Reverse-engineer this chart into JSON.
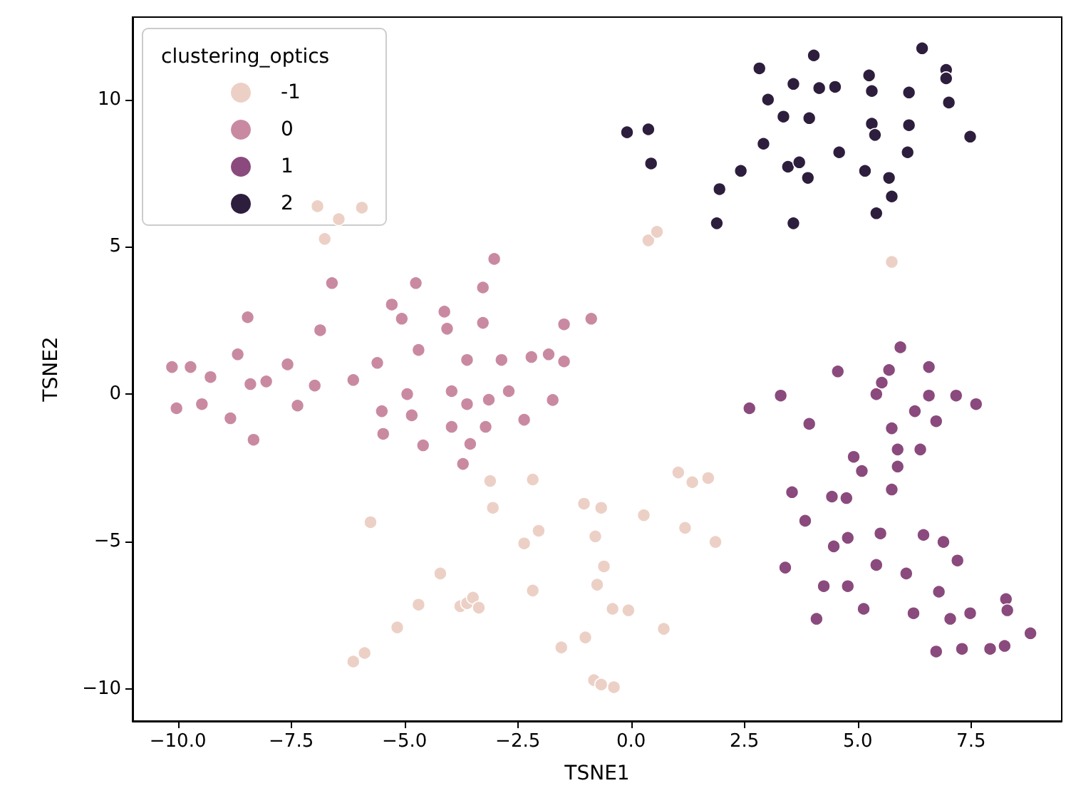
{
  "chart_data": {
    "type": "scatter",
    "xlabel": "TSNE1",
    "ylabel": "TSNE2",
    "legend_title": "clustering_optics",
    "legend": "top left",
    "grid": false,
    "marker": "circle",
    "xlim": [
      -11.0,
      9.5
    ],
    "ylim": [
      -11.1,
      12.8
    ],
    "xticks": [
      {
        "value": -10,
        "label": "−10.0"
      },
      {
        "value": -7.5,
        "label": "−7.5"
      },
      {
        "value": -5,
        "label": "−5.0"
      },
      {
        "value": -2.5,
        "label": "−2.5"
      },
      {
        "value": 0,
        "label": "0.0"
      },
      {
        "value": 2.5,
        "label": "2.5"
      },
      {
        "value": 5,
        "label": "5.0"
      },
      {
        "value": 7.5,
        "label": "7.5"
      }
    ],
    "yticks": [
      {
        "value": -10,
        "label": "−10"
      },
      {
        "value": -5,
        "label": "−5"
      },
      0,
      5,
      10
    ],
    "series": [
      {
        "name": "-1",
        "color": "#ecd0c6",
        "x": [
          0.38,
          0.57,
          5.75,
          -6.92,
          -5.94,
          -6.45,
          -6.76,
          -5.75,
          -3.11,
          -3.05,
          -2.17,
          -2.36,
          -2.04,
          -2.17,
          -4.21,
          -4.69,
          -3.77,
          -3.62,
          -3.49,
          -3.36,
          -5.16,
          -5.88,
          -6.13,
          -1.04,
          -0.66,
          -0.79,
          -0.6,
          -0.75,
          -0.41,
          -0.06,
          -1.01,
          -1.54,
          -0.82,
          -0.66,
          -0.38,
          0.28,
          0.72,
          1.04,
          1.35,
          1.7,
          1.19,
          1.86
        ],
        "values": [
          5.22,
          5.51,
          4.49,
          6.38,
          6.33,
          5.94,
          5.27,
          -4.35,
          -2.95,
          -3.86,
          -2.9,
          -5.07,
          -4.64,
          -6.67,
          -6.09,
          -7.15,
          -7.2,
          -7.1,
          -6.91,
          -7.25,
          -7.92,
          -8.79,
          -9.08,
          -3.72,
          -3.86,
          -4.83,
          -5.85,
          -6.47,
          -7.29,
          -7.34,
          -8.26,
          -8.6,
          -9.71,
          -9.86,
          -9.95,
          -4.11,
          -7.97,
          -2.66,
          -2.99,
          -2.85,
          -4.54,
          -5.02
        ]
      },
      {
        "name": "0",
        "color": "#c98aa1",
        "x": [
          -10.13,
          -9.72,
          -9.28,
          -8.46,
          -8.68,
          -8.4,
          -8.05,
          -7.58,
          -6.98,
          -6.86,
          -6.6,
          -6.13,
          -5.6,
          -5.28,
          -5.06,
          -4.75,
          -4.69,
          -4.12,
          -4.06,
          -3.62,
          -3.27,
          -3.02,
          -3.27,
          -2.86,
          -2.2,
          -2.7,
          -3.96,
          -4.94,
          -1.48,
          -0.88,
          -1.82,
          -1.48,
          -1.73,
          -10.03,
          -9.47,
          -8.84,
          -8.33,
          -7.36,
          -5.5,
          -5.47,
          -4.84,
          -4.59,
          -3.96,
          -3.62,
          -3.55,
          -3.71,
          -3.14,
          -3.21,
          -2.36
        ],
        "values": [
          0.92,
          0.92,
          0.58,
          2.61,
          1.35,
          0.34,
          0.43,
          1.01,
          0.29,
          2.17,
          3.77,
          0.48,
          1.06,
          3.04,
          2.56,
          3.77,
          1.5,
          2.8,
          2.22,
          1.16,
          3.62,
          4.59,
          2.42,
          1.16,
          1.26,
          0.1,
          0.1,
          0.0,
          2.37,
          2.56,
          1.35,
          1.11,
          -0.2,
          -0.48,
          -0.34,
          -0.82,
          -1.55,
          -0.39,
          -0.58,
          -1.35,
          -0.72,
          -1.74,
          -1.11,
          -0.34,
          -1.69,
          -2.37,
          -0.19,
          -1.11,
          -0.87
        ]
      },
      {
        "name": "1",
        "color": "#8a4a7d",
        "x": [
          2.61,
          3.3,
          3.93,
          5.41,
          6.57,
          7.17,
          7.61,
          6.26,
          6.73,
          5.75,
          5.88,
          6.38,
          4.91,
          5.09,
          5.88,
          5.75,
          3.55,
          4.43,
          4.75,
          3.84,
          4.47,
          4.78,
          5.5,
          6.45,
          6.89,
          7.2,
          5.41,
          6.07,
          3.4,
          4.25,
          4.78,
          6.79,
          5.13,
          6.23,
          7.04,
          7.48,
          8.27,
          8.3,
          8.81,
          4.09,
          6.73,
          7.3,
          7.92,
          8.24,
          5.94,
          5.69,
          5.53,
          4.56,
          6.57
        ],
        "values": [
          -0.48,
          -0.05,
          -1.01,
          0.0,
          -0.05,
          -0.05,
          -0.34,
          -0.58,
          -0.92,
          -1.16,
          -1.88,
          -1.88,
          -2.13,
          -2.61,
          -2.46,
          -3.24,
          -3.33,
          -3.48,
          -3.53,
          -4.3,
          -5.17,
          -4.88,
          -4.73,
          -4.78,
          -5.02,
          -5.65,
          -5.8,
          -6.09,
          -5.89,
          -6.52,
          -6.52,
          -6.71,
          -7.29,
          -7.44,
          -7.63,
          -7.44,
          -6.96,
          -7.34,
          -8.12,
          -7.63,
          -8.74,
          -8.65,
          -8.65,
          -8.55,
          1.59,
          0.82,
          0.39,
          0.77,
          0.92
        ]
      },
      {
        "name": "2",
        "color": "#2d1e3e",
        "x": [
          -0.09,
          0.38,
          0.44,
          2.83,
          4.03,
          3.58,
          4.15,
          4.5,
          3.02,
          3.36,
          3.93,
          2.92,
          2.42,
          1.95,
          1.89,
          3.58,
          3.46,
          3.71,
          3.9,
          4.59,
          5.25,
          5.31,
          6.13,
          6.42,
          6.95,
          6.95,
          7.01,
          7.48,
          5.31,
          5.38,
          6.13,
          6.1,
          5.16,
          5.69,
          5.75,
          5.41
        ],
        "values": [
          8.89,
          8.99,
          7.83,
          11.06,
          11.5,
          10.53,
          10.39,
          10.43,
          10.0,
          9.42,
          9.37,
          8.5,
          7.58,
          6.96,
          5.8,
          5.8,
          7.72,
          7.87,
          7.34,
          8.21,
          10.82,
          10.29,
          10.24,
          11.74,
          11.01,
          10.72,
          9.9,
          8.74,
          9.18,
          8.8,
          9.13,
          8.21,
          7.58,
          7.34,
          6.71,
          6.14
        ]
      }
    ]
  }
}
